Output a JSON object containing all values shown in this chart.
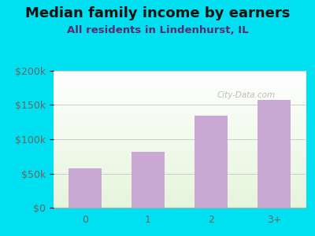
{
  "title": "Median family income by earners",
  "subtitle": "All residents in Lindenhurst, IL",
  "categories": [
    "0",
    "1",
    "2",
    "3+"
  ],
  "values": [
    58000,
    82000,
    135000,
    158000
  ],
  "bar_color": "#c9a8d4",
  "background_color": "#00e0f0",
  "plot_bg_left": "#f0f8ee",
  "plot_bg_right": "#e8f5e2",
  "ylim": [
    0,
    200000
  ],
  "yticks": [
    0,
    50000,
    100000,
    150000,
    200000
  ],
  "ytick_labels": [
    "$0",
    "$50k",
    "$100k",
    "$150k",
    "$200k"
  ],
  "title_fontsize": 13,
  "subtitle_fontsize": 9.5,
  "title_color": "#111111",
  "subtitle_color": "#5c2d6e",
  "tick_color": "#666666",
  "grid_color": "#cccccc",
  "watermark": "City-Data.com",
  "bar_width": 0.52
}
